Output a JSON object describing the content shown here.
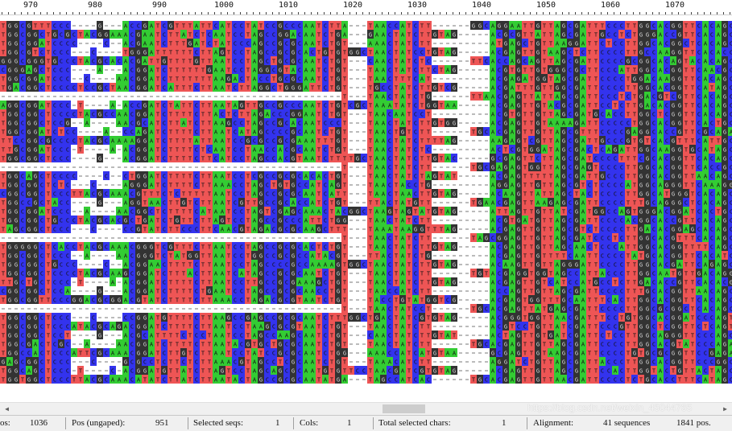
{
  "ruler": {
    "labels": [
      "970",
      "980",
      "990",
      "1000",
      "1010",
      "1020",
      "1030",
      "1040",
      "1050",
      "1060",
      "1070"
    ]
  },
  "colors": {
    "A": "#33cc33",
    "C": "#3333ee",
    "G": "#333333",
    "T": "#ee5555",
    "gap": "#ffffff"
  },
  "status": {
    "pos_label": "os:",
    "pos_value": "1036",
    "ungapped_label": "Pos (ungaped):",
    "ungapped_value": "951",
    "selected_seqs_label": "Selected seqs:",
    "selected_seqs_value": "1",
    "cols_label": "Cols:",
    "cols_value": "1",
    "total_selected_label": "Total selected chars:",
    "total_selected_value": "1",
    "alignment_label": "Alignment:",
    "alignment_value": "41 sequences",
    "length_value": "1841 pos."
  },
  "watermark": "https://blog.csdn.net/weixin_45044765"
}
